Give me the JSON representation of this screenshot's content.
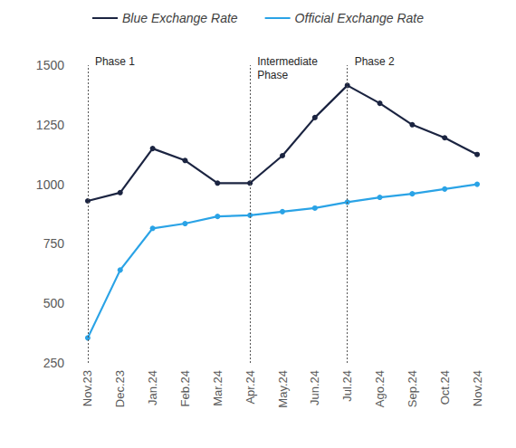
{
  "chart_data": {
    "type": "line",
    "categories": [
      "Nov.23",
      "Dec.23",
      "Jan.24",
      "Feb.24",
      "Mar.24",
      "Apr.24",
      "May.24",
      "Jun.24",
      "Jul.24",
      "Ago.24",
      "Sep.24",
      "Oct.24",
      "Nov.24"
    ],
    "series": [
      {
        "name": "Blue Exchange Rate",
        "color": "#1b2441",
        "marker": "circle",
        "values": [
          930,
          965,
          1150,
          1100,
          1005,
          1005,
          1120,
          1280,
          1415,
          1340,
          1250,
          1195,
          1125
        ]
      },
      {
        "name": "Official Exchange Rate",
        "color": "#2aa3e6",
        "marker": "circle",
        "values": [
          355,
          640,
          815,
          835,
          865,
          870,
          885,
          900,
          925,
          945,
          960,
          980,
          1000
        ]
      }
    ],
    "ylim": [
      250,
      1500
    ],
    "yticks": [
      250,
      500,
      750,
      1000,
      1250,
      1500
    ],
    "grid": false,
    "legend": "top",
    "annotations": [
      {
        "x": "Nov.23",
        "label": "Phase 1"
      },
      {
        "x": "Apr.24",
        "label": "Intermediate Phase"
      },
      {
        "x": "Jul.24",
        "label": "Phase 2"
      }
    ]
  }
}
